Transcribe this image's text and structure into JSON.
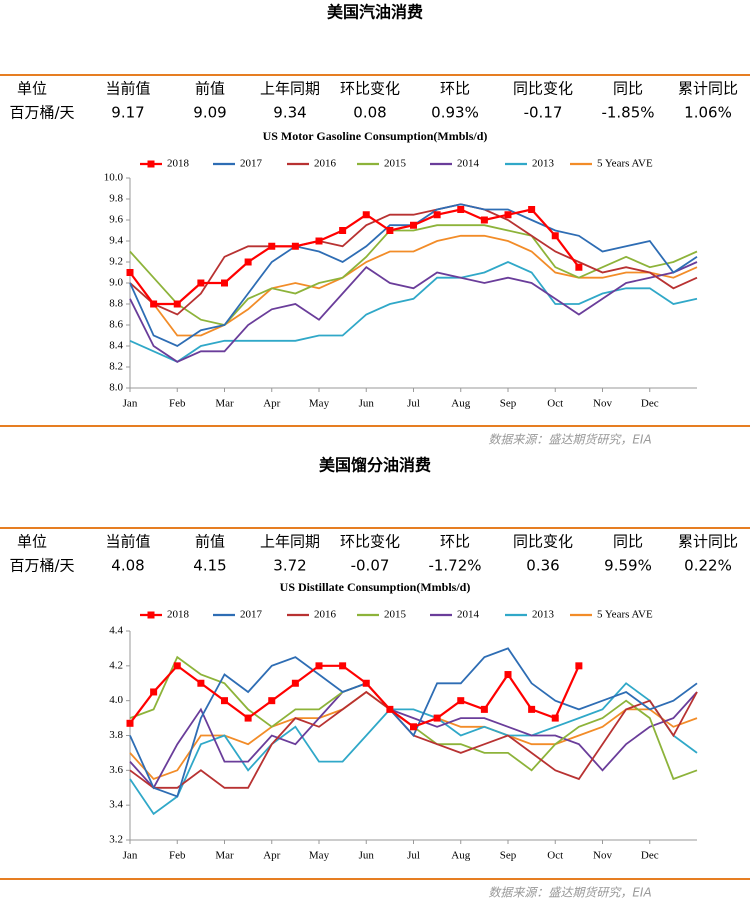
{
  "sections": [
    {
      "title": "美国汽油消费",
      "table": {
        "headers": [
          "单位",
          "当前值",
          "前值",
          "上年同期",
          "环比变化",
          "环比",
          "同比变化",
          "同比",
          "累计同比"
        ],
        "row": [
          "百万桶/天",
          "9.17",
          "9.09",
          "9.34",
          "0.08",
          "0.93%",
          "-0.17",
          "-1.85%",
          "1.06%"
        ]
      },
      "source": "数据来源：盛达期货研究，EIA"
    },
    {
      "title": "美国馏分油消费",
      "table": {
        "headers": [
          "单位",
          "当前值",
          "前值",
          "上年同期",
          "环比变化",
          "环比",
          "同比变化",
          "同比",
          "累计同比"
        ],
        "row": [
          "百万桶/天",
          "4.08",
          "4.15",
          "3.72",
          "-0.07",
          "-1.72%",
          "0.36",
          "9.59%",
          "0.22%"
        ]
      },
      "source": "数据来源：盛达期货研究，EIA"
    }
  ],
  "chart_data": [
    {
      "type": "line",
      "title": "US Motor Gasoline Consumption(Mmbls/d)",
      "x": [
        0,
        0.5,
        1,
        1.5,
        2,
        2.5,
        3,
        3.5,
        4,
        4.5,
        5,
        5.5,
        6,
        6.5,
        7,
        7.5,
        8,
        8.5,
        9,
        9.5,
        10,
        10.5,
        11,
        11.5,
        12
      ],
      "xlim": [
        0,
        12
      ],
      "xticks": [
        {
          "value": 0,
          "label": "Jan"
        },
        {
          "value": 1,
          "label": "Feb"
        },
        {
          "value": 2,
          "label": "Mar"
        },
        {
          "value": 3,
          "label": "Apr"
        },
        {
          "value": 4,
          "label": "May"
        },
        {
          "value": 5,
          "label": "Jun"
        },
        {
          "value": 6,
          "label": "Jul"
        },
        {
          "value": 7,
          "label": "Aug"
        },
        {
          "value": 8,
          "label": "Sep"
        },
        {
          "value": 9,
          "label": "Oct"
        },
        {
          "value": 10,
          "label": "Nov"
        },
        {
          "value": 11,
          "label": "Dec"
        }
      ],
      "ylim": [
        8.0,
        10.0
      ],
      "yticks": [
        {
          "value": 8.0,
          "label": "8.0"
        },
        8.2,
        8.4,
        8.6,
        8.8,
        {
          "value": 9.0,
          "label": "9.0"
        },
        9.2,
        9.4,
        9.6,
        9.8,
        {
          "value": 10.0,
          "label": "10.0"
        }
      ],
      "series": [
        {
          "name": "2018",
          "color": "#ff0000",
          "marker": "square",
          "values": [
            9.1,
            8.8,
            8.8,
            9.0,
            9.0,
            9.2,
            9.35,
            9.35,
            9.4,
            9.5,
            9.65,
            9.5,
            9.55,
            9.65,
            9.7,
            9.6,
            9.65,
            9.7,
            9.45,
            9.15,
            null,
            null,
            null,
            null,
            null
          ]
        },
        {
          "name": "2017",
          "color": "#2e6db4",
          "values": [
            9.0,
            8.5,
            8.4,
            8.55,
            8.6,
            8.9,
            9.2,
            9.35,
            9.3,
            9.2,
            9.35,
            9.55,
            9.55,
            9.7,
            9.75,
            9.7,
            9.7,
            9.6,
            9.5,
            9.45,
            9.3,
            9.35,
            9.4,
            9.1,
            9.25
          ]
        },
        {
          "name": "2016",
          "color": "#b83232",
          "values": [
            9.0,
            8.8,
            8.7,
            8.9,
            9.25,
            9.35,
            9.35,
            9.35,
            9.4,
            9.35,
            9.55,
            9.65,
            9.65,
            9.7,
            9.75,
            9.7,
            9.6,
            9.45,
            9.3,
            9.2,
            9.1,
            9.15,
            9.1,
            8.95,
            9.05
          ]
        },
        {
          "name": "2015",
          "color": "#8db33a",
          "values": [
            9.3,
            9.05,
            8.8,
            8.65,
            8.6,
            8.85,
            8.95,
            8.9,
            9.0,
            9.05,
            9.25,
            9.5,
            9.5,
            9.55,
            9.55,
            9.55,
            9.5,
            9.45,
            9.15,
            9.05,
            9.15,
            9.25,
            9.15,
            9.2,
            9.3
          ]
        },
        {
          "name": "2014",
          "color": "#6a3d9a",
          "values": [
            8.85,
            8.4,
            8.25,
            8.35,
            8.35,
            8.6,
            8.75,
            8.8,
            8.65,
            8.9,
            9.15,
            9.0,
            8.95,
            9.1,
            9.05,
            9.0,
            9.05,
            9.0,
            8.85,
            8.7,
            8.85,
            9.0,
            9.05,
            9.1,
            9.2
          ]
        },
        {
          "name": "2013",
          "color": "#30a8c8",
          "values": [
            8.45,
            8.35,
            8.25,
            8.4,
            8.45,
            8.45,
            8.45,
            8.45,
            8.5,
            8.5,
            8.7,
            8.8,
            8.85,
            9.05,
            9.05,
            9.1,
            9.2,
            9.1,
            8.8,
            8.8,
            8.9,
            8.95,
            8.95,
            8.8,
            8.85
          ]
        },
        {
          "name": "5 Years AVE",
          "color": "#f28c28",
          "values": [
            9.0,
            8.8,
            8.5,
            8.5,
            8.6,
            8.75,
            8.95,
            9.0,
            8.95,
            9.05,
            9.2,
            9.3,
            9.3,
            9.4,
            9.45,
            9.45,
            9.4,
            9.3,
            9.1,
            9.05,
            9.05,
            9.1,
            9.1,
            9.05,
            9.15
          ]
        }
      ]
    },
    {
      "type": "line",
      "title": "US Distillate Consumption(Mmbls/d)",
      "x": [
        0,
        0.5,
        1,
        1.5,
        2,
        2.5,
        3,
        3.5,
        4,
        4.5,
        5,
        5.5,
        6,
        6.5,
        7,
        7.5,
        8,
        8.5,
        9,
        9.5,
        10,
        10.5,
        11,
        11.5,
        12
      ],
      "xlim": [
        0,
        12
      ],
      "xticks": [
        {
          "value": 0,
          "label": "Jan"
        },
        {
          "value": 1,
          "label": "Feb"
        },
        {
          "value": 2,
          "label": "Mar"
        },
        {
          "value": 3,
          "label": "Apr"
        },
        {
          "value": 4,
          "label": "May"
        },
        {
          "value": 5,
          "label": "Jun"
        },
        {
          "value": 6,
          "label": "Jul"
        },
        {
          "value": 7,
          "label": "Aug"
        },
        {
          "value": 8,
          "label": "Sep"
        },
        {
          "value": 9,
          "label": "Oct"
        },
        {
          "value": 10,
          "label": "Nov"
        },
        {
          "value": 11,
          "label": "Dec"
        }
      ],
      "ylim": [
        3.2,
        4.4
      ],
      "yticks": [
        3.2,
        3.4,
        3.6,
        3.8,
        {
          "value": 4.0,
          "label": "4.0"
        },
        4.2,
        4.4
      ],
      "series": [
        {
          "name": "2018",
          "color": "#ff0000",
          "marker": "square",
          "values": [
            3.87,
            4.05,
            4.2,
            4.1,
            4.0,
            3.9,
            4.0,
            4.1,
            4.2,
            4.2,
            4.1,
            3.95,
            3.85,
            3.9,
            4.0,
            3.95,
            4.15,
            3.95,
            3.9,
            4.2,
            null,
            null,
            null,
            null,
            null
          ]
        },
        {
          "name": "2017",
          "color": "#2e6db4",
          "values": [
            3.8,
            3.5,
            3.45,
            3.9,
            4.15,
            4.05,
            4.2,
            4.25,
            4.15,
            4.05,
            4.1,
            3.95,
            3.8,
            4.1,
            4.1,
            4.25,
            4.3,
            4.1,
            4.0,
            3.95,
            4.0,
            4.05,
            3.95,
            4.0,
            4.1
          ]
        },
        {
          "name": "2016",
          "color": "#b83232",
          "values": [
            3.6,
            3.5,
            3.5,
            3.6,
            3.5,
            3.5,
            3.75,
            3.9,
            3.85,
            3.95,
            4.05,
            3.95,
            3.8,
            3.75,
            3.7,
            3.75,
            3.8,
            3.7,
            3.6,
            3.55,
            3.75,
            3.95,
            4.0,
            3.8,
            4.05
          ]
        },
        {
          "name": "2015",
          "color": "#8db33a",
          "values": [
            3.9,
            3.95,
            4.25,
            4.15,
            4.1,
            3.95,
            3.85,
            3.95,
            3.95,
            4.05,
            4.1,
            3.95,
            3.85,
            3.75,
            3.75,
            3.7,
            3.7,
            3.6,
            3.75,
            3.85,
            3.9,
            4.0,
            3.9,
            3.55,
            3.6
          ]
        },
        {
          "name": "2014",
          "color": "#6a3d9a",
          "values": [
            3.65,
            3.5,
            3.75,
            3.95,
            3.65,
            3.65,
            3.8,
            3.75,
            3.9,
            4.05,
            4.1,
            3.95,
            3.9,
            3.85,
            3.9,
            3.9,
            3.85,
            3.8,
            3.8,
            3.75,
            3.6,
            3.75,
            3.85,
            3.9,
            4.05
          ]
        },
        {
          "name": "2013",
          "color": "#30a8c8",
          "values": [
            3.55,
            3.35,
            3.45,
            3.75,
            3.8,
            3.6,
            3.75,
            3.85,
            3.65,
            3.65,
            3.8,
            3.95,
            3.95,
            3.9,
            3.8,
            3.85,
            3.8,
            3.8,
            3.85,
            3.9,
            3.95,
            4.1,
            4.0,
            3.8,
            3.7
          ]
        },
        {
          "name": "5 Years AVE",
          "color": "#f28c28",
          "values": [
            3.7,
            3.55,
            3.6,
            3.8,
            3.8,
            3.75,
            3.85,
            3.9,
            3.9,
            3.95,
            4.05,
            3.95,
            3.85,
            3.9,
            3.85,
            3.85,
            3.8,
            3.75,
            3.75,
            3.8,
            3.85,
            3.95,
            3.95,
            3.85,
            3.9
          ]
        }
      ]
    }
  ]
}
